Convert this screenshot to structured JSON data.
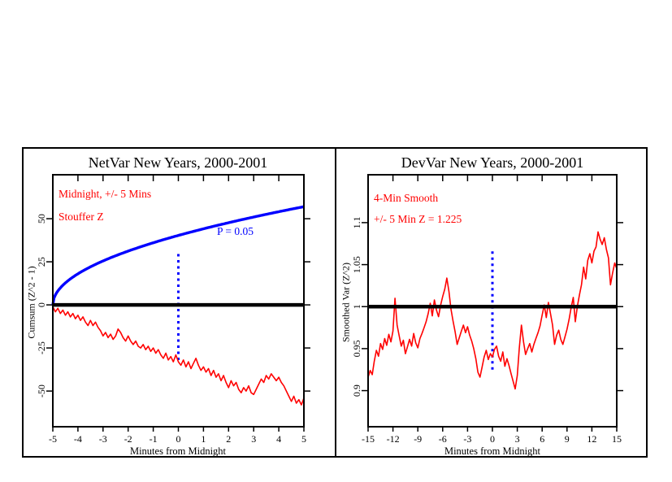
{
  "chart_data": [
    {
      "type": "line",
      "title": "NetVar New Years, 2000-2001",
      "xlabel": "Minutes from Midnight",
      "ylabel": "Cumsum (Z^2 - 1)",
      "xlim": [
        -5,
        5
      ],
      "ylim": [
        -70.7,
        75.5
      ],
      "xticks": [
        -5,
        -4,
        -3,
        -2,
        -1,
        0,
        1,
        2,
        3,
        4,
        5
      ],
      "yticks": [
        -50,
        -25,
        0,
        25,
        50
      ],
      "grid": false,
      "annotations": [
        {
          "text": "Midnight, +/- 5 Mins",
          "color": "#ff0000"
        },
        {
          "text": "Stouffer Z",
          "color": "#ff0000"
        },
        {
          "text": "P = 0.05",
          "color": "#0000ff"
        }
      ],
      "ref_line_y": 0,
      "dotted_line": {
        "x": 0,
        "y_from": -32,
        "y_to": 31.5,
        "color": "#0000ff"
      },
      "envelope": {
        "label": "P = 0.05 significance envelope",
        "color": "#0000ff",
        "formula": "1.645*sqrt(2*t_seconds)",
        "coef": 1.645,
        "x_start": -5,
        "seconds_per_minute": 60,
        "end_value": 57
      },
      "series": {
        "name": "Cumsum (Z^2 - 1)",
        "color": "#ff0000",
        "x_start": -5,
        "x_step": 0.1,
        "values": [
          -1,
          -4,
          -2,
          -5,
          -3,
          -6,
          -4,
          -7,
          -5,
          -8,
          -6,
          -9,
          -7,
          -10,
          -12,
          -9,
          -12,
          -10,
          -13,
          -15,
          -18,
          -16,
          -19,
          -17,
          -20,
          -18,
          -14,
          -16,
          -19,
          -21,
          -18,
          -21,
          -23,
          -21,
          -24,
          -25,
          -23,
          -26,
          -24,
          -27,
          -25,
          -28,
          -26,
          -29,
          -31,
          -28,
          -32,
          -30,
          -33,
          -29,
          -33,
          -35,
          -32,
          -36,
          -33,
          -37,
          -34,
          -31,
          -35,
          -38,
          -36,
          -39,
          -37,
          -41,
          -38,
          -42,
          -40,
          -44,
          -41,
          -45,
          -48,
          -44,
          -47,
          -45,
          -49,
          -51,
          -48,
          -50,
          -47,
          -51,
          -52,
          -49,
          -46,
          -43,
          -45,
          -41,
          -43,
          -40,
          -42,
          -44,
          -42,
          -45,
          -47,
          -50,
          -53,
          -56,
          -53,
          -57,
          -55,
          -58,
          -54
        ]
      }
    },
    {
      "type": "line",
      "title": "DevVar New Years, 2000-2001",
      "xlabel": "Minutes from Midnight",
      "ylabel": "Smoothed Var (Z^2)",
      "xlim": [
        -15,
        15
      ],
      "ylim": [
        0.857,
        1.157
      ],
      "xticks": [
        -15,
        -12,
        -9,
        -6,
        -3,
        0,
        3,
        6,
        9,
        12,
        15
      ],
      "yticks": [
        0.9,
        0.95,
        1,
        1.05,
        1.1
      ],
      "grid": false,
      "annotations": [
        {
          "text": "4-Min Smooth",
          "color": "#ff0000"
        },
        {
          "text": "+/- 5 Min Z = 1.225",
          "color": "#ff0000"
        }
      ],
      "ref_line_y": 1,
      "dotted_line": {
        "x": 0,
        "y_from": 0.925,
        "y_to": 1.067,
        "color": "#0000ff"
      },
      "series": {
        "name": "Smoothed Var (Z^2)",
        "color": "#ff0000",
        "x_start": -15,
        "x_step": 0.25,
        "values": [
          0.916,
          0.924,
          0.919,
          0.935,
          0.948,
          0.941,
          0.956,
          0.949,
          0.962,
          0.954,
          0.967,
          0.958,
          0.971,
          1.01,
          0.978,
          0.965,
          0.953,
          0.96,
          0.944,
          0.952,
          0.961,
          0.953,
          0.968,
          0.957,
          0.951,
          0.962,
          0.968,
          0.975,
          0.982,
          0.992,
          1.004,
          0.989,
          1.008,
          0.996,
          0.988,
          1.002,
          1.012,
          1.021,
          1.034,
          1.018,
          0.997,
          0.983,
          0.97,
          0.955,
          0.963,
          0.971,
          0.978,
          0.969,
          0.976,
          0.966,
          0.959,
          0.95,
          0.938,
          0.922,
          0.916,
          0.928,
          0.94,
          0.948,
          0.937,
          0.944,
          0.94,
          0.949,
          0.953,
          0.941,
          0.935,
          0.946,
          0.929,
          0.938,
          0.93,
          0.92,
          0.911,
          0.902,
          0.918,
          0.951,
          0.978,
          0.958,
          0.943,
          0.95,
          0.956,
          0.946,
          0.955,
          0.962,
          0.969,
          0.977,
          0.99,
          1.002,
          0.987,
          1.005,
          0.992,
          0.978,
          0.955,
          0.966,
          0.972,
          0.961,
          0.955,
          0.964,
          0.973,
          0.985,
          0.999,
          1.011,
          0.982,
          1.0,
          1.014,
          1.026,
          1.047,
          1.033,
          1.055,
          1.063,
          1.052,
          1.066,
          1.071,
          1.089,
          1.08,
          1.074,
          1.082,
          1.068,
          1.058,
          1.026,
          1.04,
          1.052,
          1.045
        ]
      }
    }
  ]
}
